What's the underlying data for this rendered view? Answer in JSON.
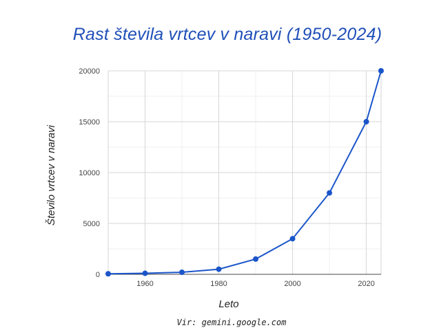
{
  "chart_data": {
    "type": "line",
    "title": "Rast števila vrtcev v naravi (1950-2024)",
    "xlabel": "Leto",
    "ylabel": "Število vrtcev v naravi",
    "x": [
      1950,
      1960,
      1970,
      1980,
      1990,
      2000,
      2010,
      2020,
      2024
    ],
    "series": [
      {
        "values": [
          50,
          100,
          200,
          500,
          1500,
          3500,
          8000,
          15000,
          20000
        ]
      }
    ],
    "xlim": [
      1950,
      2024
    ],
    "ylim": [
      0,
      20000
    ],
    "xticks": [
      "1960",
      "1980",
      "2000",
      "2020"
    ],
    "yticks": [
      "0",
      "5000",
      "10000",
      "15000",
      "20000"
    ],
    "grid": true,
    "colors": {
      "line": "#1a55c9",
      "title": "#1f4fb8",
      "grid": "#d6d6d6",
      "minor_grid": "#efefef"
    }
  },
  "footer": {
    "source": "Vir: gemini.google.com"
  }
}
